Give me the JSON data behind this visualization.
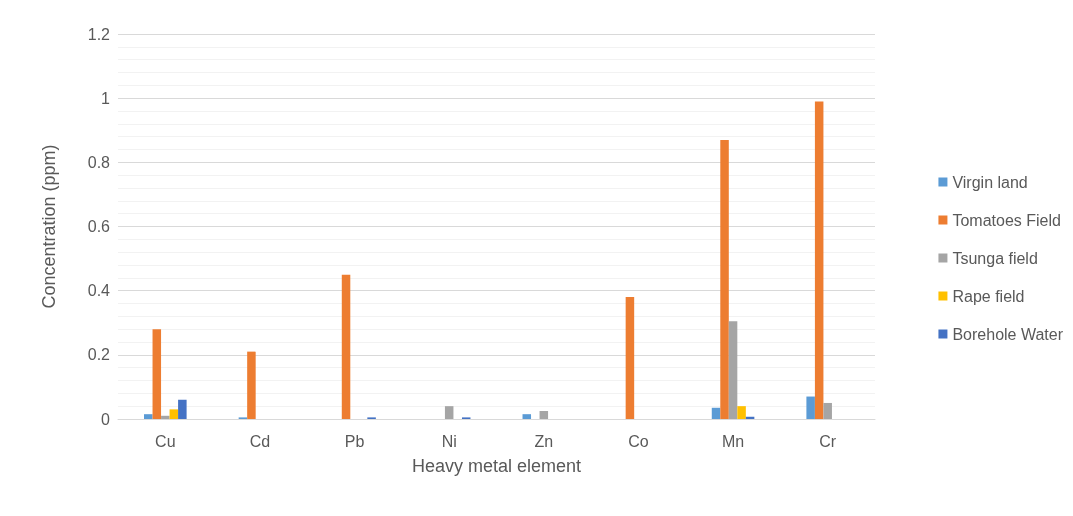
{
  "chart_data": {
    "type": "bar",
    "xlabel": "Heavy metal element",
    "ylabel": "Concentration (ppm)",
    "categories": [
      "Cu",
      "Cd",
      "Pb",
      "Ni",
      "Zn",
      "Co",
      "Mn",
      "Cr"
    ],
    "series": [
      {
        "name": "Virgin land",
        "color": "#5b9bd5",
        "values": [
          0.015,
          0.005,
          null,
          null,
          0.015,
          null,
          0.035,
          0.07
        ]
      },
      {
        "name": "Tomatoes Field",
        "color": "#ed7d31",
        "values": [
          0.28,
          0.21,
          0.45,
          null,
          null,
          0.38,
          0.87,
          0.99
        ]
      },
      {
        "name": "Tsunga field",
        "color": "#a5a5a5",
        "values": [
          0.01,
          null,
          null,
          0.04,
          0.025,
          null,
          0.305,
          0.05
        ]
      },
      {
        "name": "Rape field",
        "color": "#ffc000",
        "values": [
          0.03,
          null,
          null,
          null,
          null,
          null,
          0.04,
          null
        ]
      },
      {
        "name": "Borehole Water",
        "color": "#4472c4",
        "values": [
          0.06,
          null,
          0.005,
          0.005,
          null,
          null,
          0.007,
          null
        ]
      }
    ],
    "ylim": [
      0,
      1.2
    ],
    "yticks": [
      0,
      0.2,
      0.4,
      0.6,
      0.8,
      1,
      1.2
    ],
    "grid": "y",
    "legend": "right"
  }
}
